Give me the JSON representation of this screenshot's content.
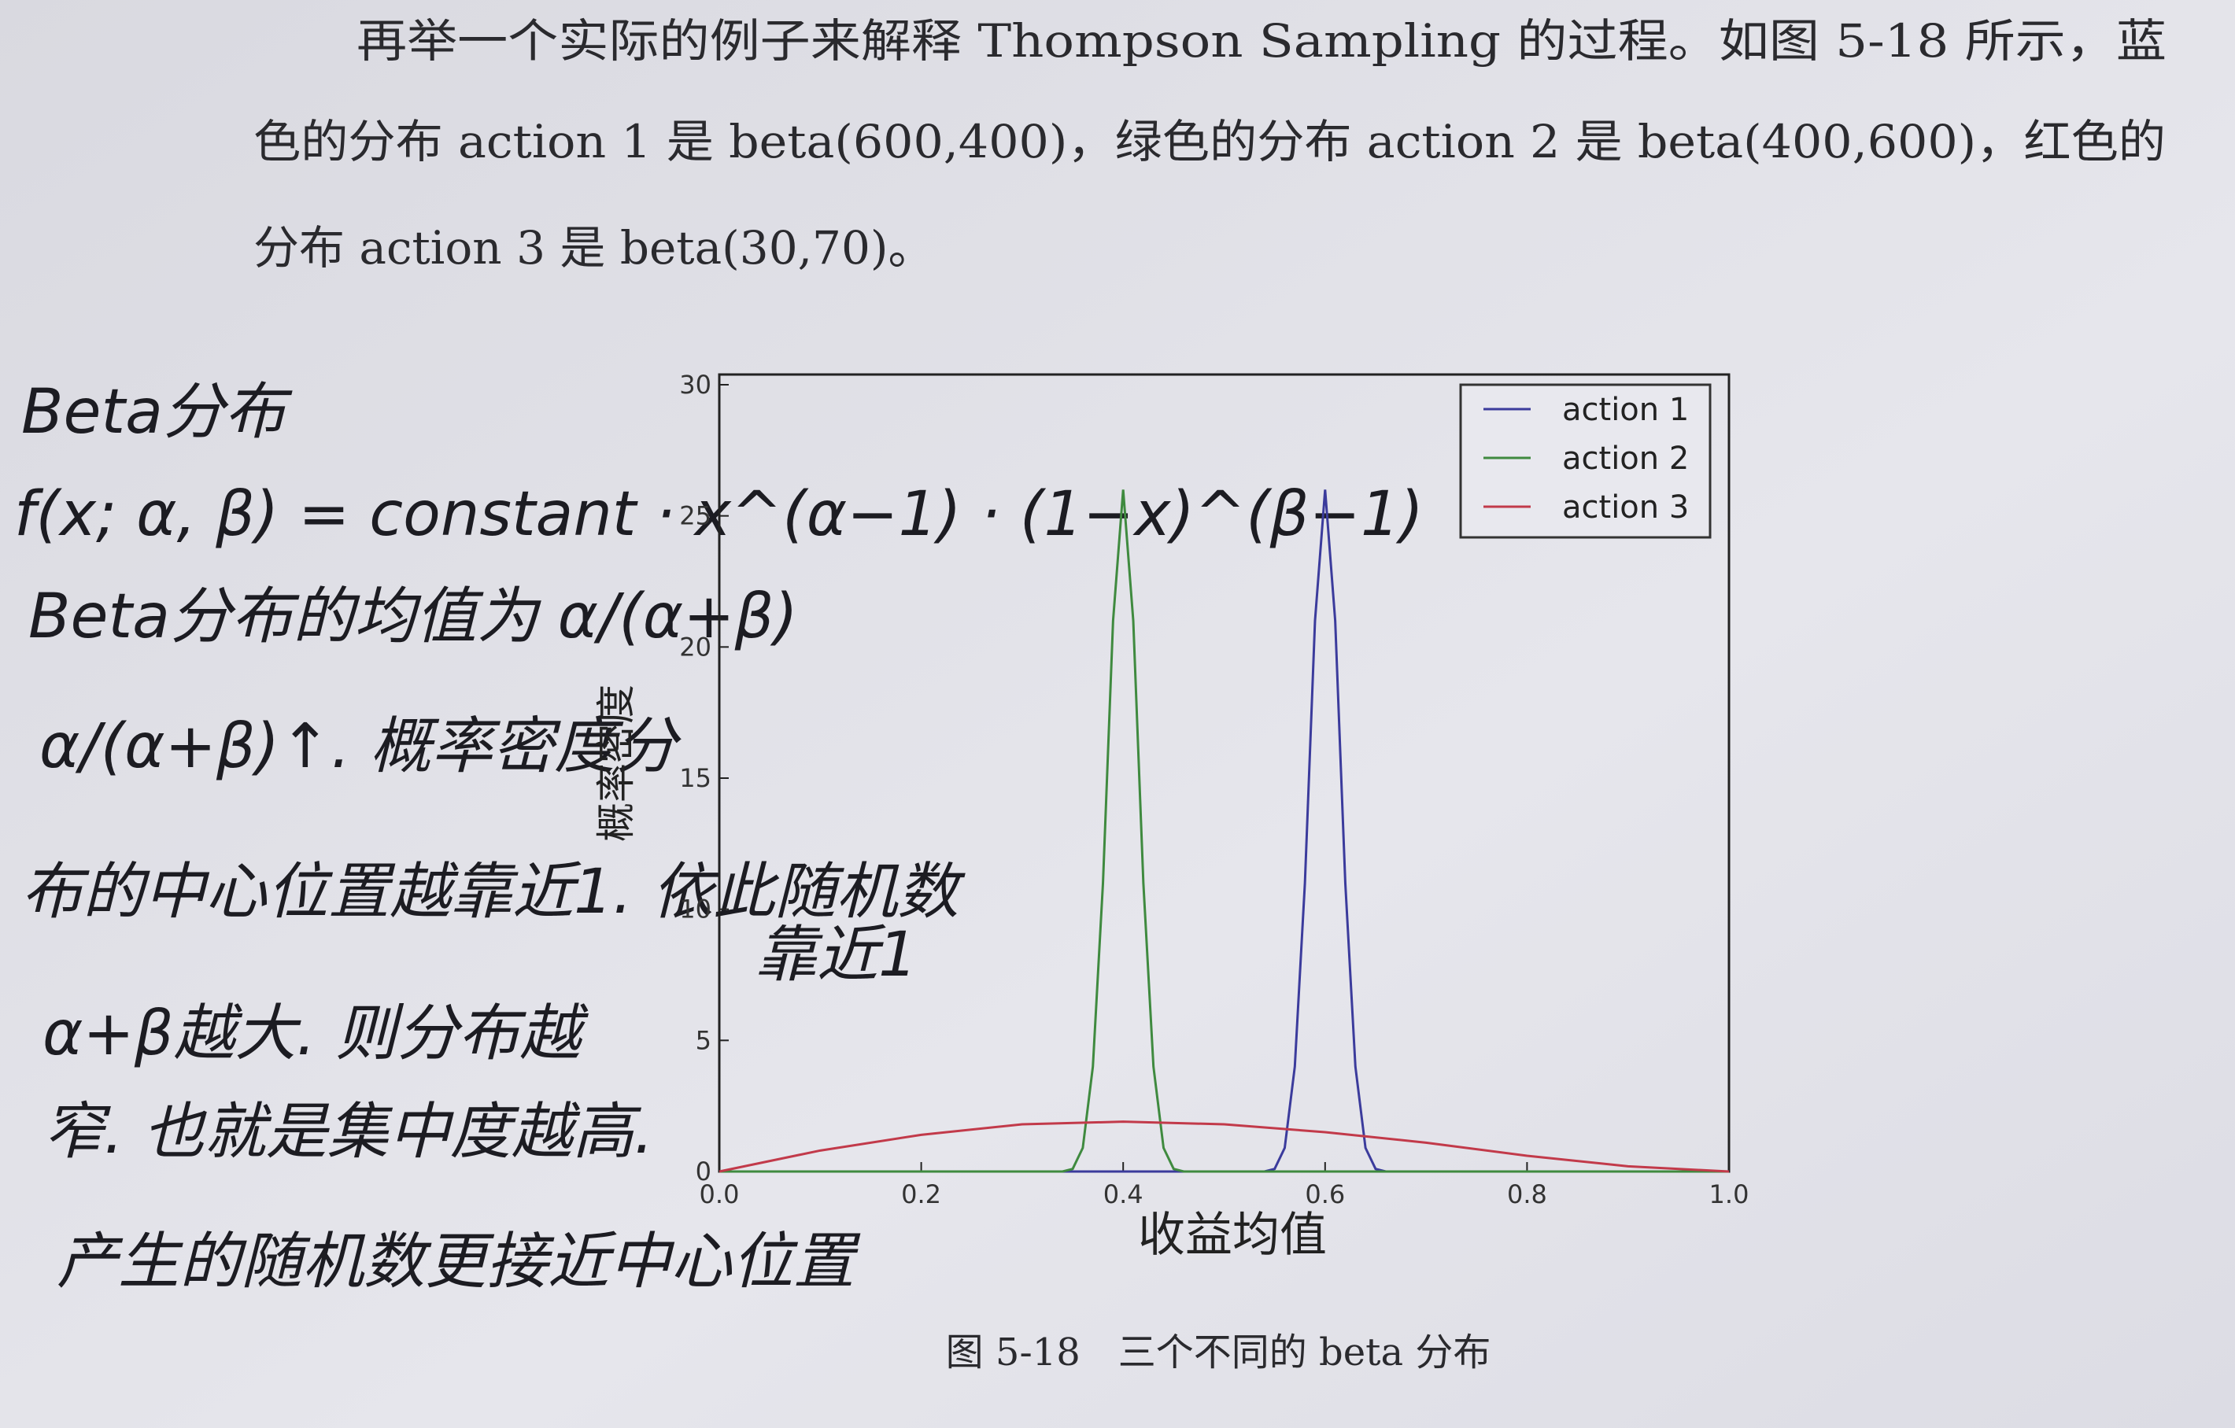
{
  "paragraph": [
    "再举一个实际的例子来解释 Thompson Sampling 的过程。如图 5-18 所示，蓝",
    "色的分布 action 1 是 beta(600,400)，绿色的分布 action 2 是 beta(400,600)，红色的",
    "分布 action 3 是 beta(30,70)。"
  ],
  "notes": [
    "Beta分布",
    "f(x; α, β) = constant · x^(α−1) · (1−x)^(β−1)",
    "Beta分布的均值为 α/(α+β)",
    "α/(α+β)↑. 概率密度分",
    "布的中心位置越靠近1. 依此随机数",
    "靠近1",
    "α+β越大. 则分布越",
    "窄. 也就是集中度越高.",
    "产生的随机数更接近中心位置"
  ],
  "chart_data": {
    "type": "line",
    "xlabel": "收益均值",
    "ylabel": "概率密度",
    "xlim": [
      0,
      1
    ],
    "ylim": [
      0,
      30
    ],
    "xticks": [
      {
        "value": 0,
        "label": "0.0"
      },
      0.2,
      0.4,
      0.6,
      0.8,
      {
        "value": 1,
        "label": "1.0"
      }
    ],
    "yticks": [
      0,
      5,
      10,
      15,
      20,
      25,
      30
    ],
    "legend": "upper right",
    "series": [
      {
        "name": "action 1",
        "color": "#3b3b9c",
        "x": [
          0,
          0.54,
          0.55,
          0.56,
          0.57,
          0.58,
          0.59,
          0.6,
          0.61,
          0.62,
          0.63,
          0.64,
          0.65,
          0.66,
          1
        ],
        "values": [
          0,
          0,
          0.1,
          0.9,
          4,
          11,
          21,
          26,
          21,
          11,
          4,
          0.9,
          0.1,
          0,
          0
        ]
      },
      {
        "name": "action 2",
        "color": "#3f8a3f",
        "x": [
          0,
          0.34,
          0.35,
          0.36,
          0.37,
          0.38,
          0.39,
          0.4,
          0.41,
          0.42,
          0.43,
          0.44,
          0.45,
          0.46,
          1
        ],
        "values": [
          0,
          0,
          0.1,
          0.9,
          4,
          11,
          21,
          26,
          21,
          11,
          4,
          0.9,
          0.1,
          0,
          0
        ]
      },
      {
        "name": "action 3",
        "color": "#c23a4a",
        "x": [
          0,
          0.1,
          0.2,
          0.3,
          0.4,
          0.5,
          0.6,
          0.7,
          0.8,
          0.9,
          1
        ],
        "values": [
          0,
          0.8,
          1.4,
          1.8,
          1.9,
          1.8,
          1.5,
          1.1,
          0.6,
          0.2,
          0
        ]
      }
    ]
  },
  "caption": "图 5-18　三个不同的 beta 分布"
}
